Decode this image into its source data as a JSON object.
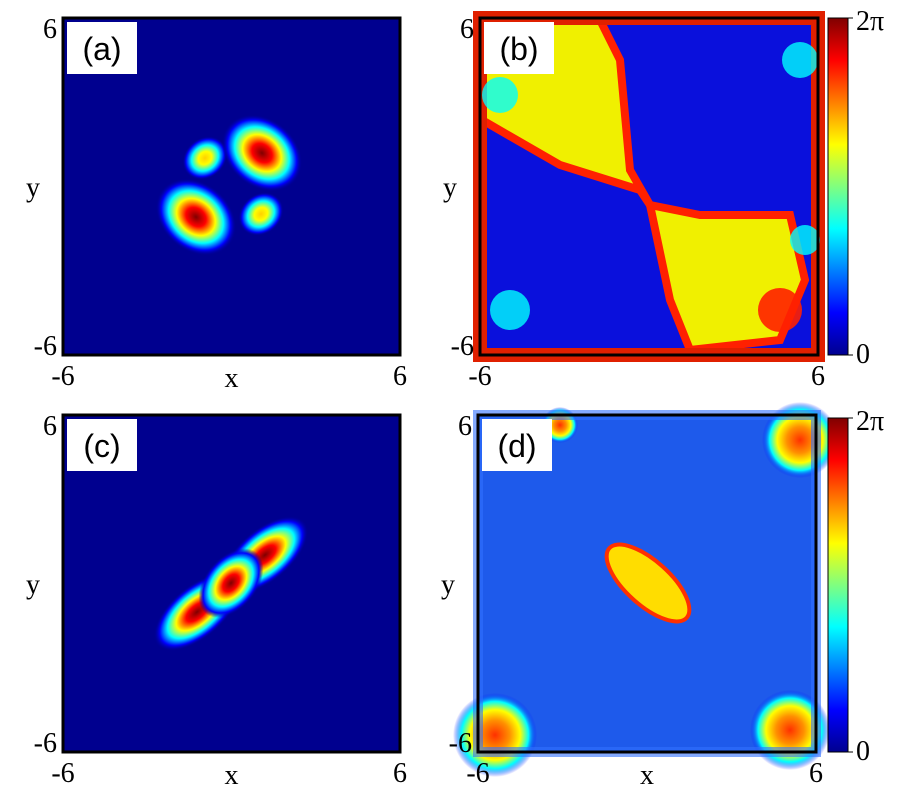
{
  "chart_data": [
    {
      "type": "heatmap",
      "panel_label": "(a)",
      "x_label": "x",
      "y_label": "y",
      "xlim": [
        -6,
        6
      ],
      "ylim": [
        -6,
        6
      ],
      "xticks": [
        -6,
        6
      ],
      "yticks": [
        -6,
        6
      ]
    },
    {
      "type": "heatmap",
      "panel_label": "(b)",
      "y_label": "y",
      "xlim": [
        -6,
        6
      ],
      "ylim": [
        -6,
        6
      ],
      "xticks": [
        -6,
        6
      ],
      "yticks": [
        -6,
        6
      ],
      "colorbar": {
        "lim": [
          0,
          6.283
        ],
        "ticks": [
          0,
          {
            "value": 6.283,
            "label": "2π"
          }
        ]
      }
    },
    {
      "type": "heatmap",
      "panel_label": "(c)",
      "x_label": "x",
      "y_label": "y",
      "xlim": [
        -6,
        6
      ],
      "ylim": [
        -6,
        6
      ],
      "xticks": [
        -6,
        6
      ],
      "yticks": [
        -6,
        6
      ]
    },
    {
      "type": "heatmap",
      "panel_label": "(d)",
      "x_label": "x",
      "y_label": "y",
      "xlim": [
        -6,
        6
      ],
      "ylim": [
        -6,
        6
      ],
      "xticks": [
        -6,
        6
      ],
      "yticks": [
        -6,
        6
      ],
      "colorbar": {
        "lim": [
          0,
          6.283
        ],
        "ticks": [
          0,
          {
            "value": 6.283,
            "label": "2π"
          }
        ]
      }
    }
  ]
}
